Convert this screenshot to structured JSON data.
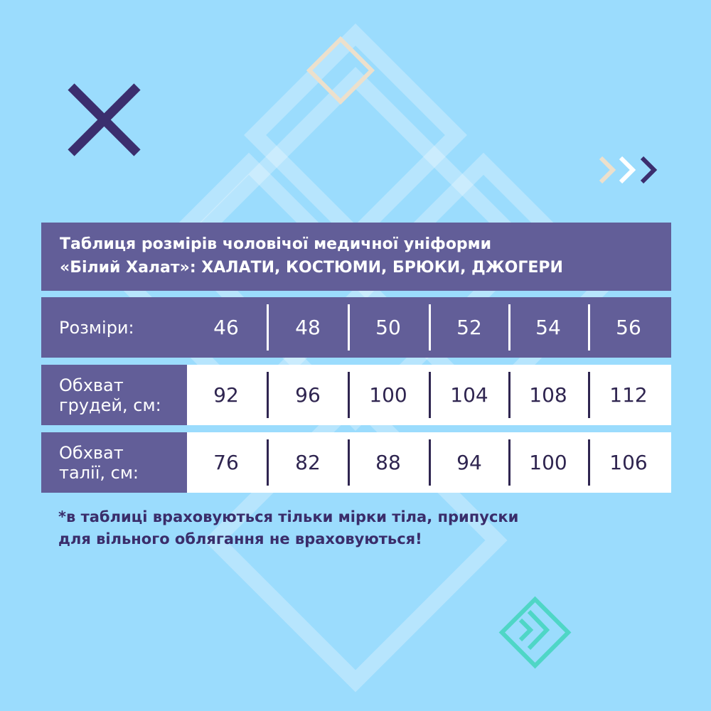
{
  "colors": {
    "background": "#9bdcfd",
    "panel": "#625e98",
    "text_dark": "#2f2550",
    "accent_teal": "#4fd6c6",
    "accent_beige": "#ece0cc",
    "mark": "#3b2e6e"
  },
  "icons": [
    "close-x-icon",
    "chevrons-right-icon",
    "beige-diamond-icon",
    "teal-diamond-chevron-icon"
  ],
  "title": {
    "line1": "Таблиця розмірів чоловічої медичної уніформи",
    "line2": "«Білий Халат»:  ХАЛАТИ, КОСТЮМИ, БРЮКИ, ДЖОГЕРИ"
  },
  "table": {
    "rows": [
      {
        "label": "Розміри:",
        "values": [
          "46",
          "48",
          "50",
          "52",
          "54",
          "56"
        ]
      },
      {
        "label1": "Обхват",
        "label2": "грудей, см:",
        "values": [
          "92",
          "96",
          "100",
          "104",
          "108",
          "112"
        ]
      },
      {
        "label1": "Обхват",
        "label2": "талії, см:",
        "values": [
          "76",
          "82",
          "88",
          "94",
          "100",
          "106"
        ]
      }
    ]
  },
  "note": {
    "line1": "*в таблиці враховуються тільки мірки тіла, припуски",
    "line2": "для вільного облягання не враховуються!"
  }
}
